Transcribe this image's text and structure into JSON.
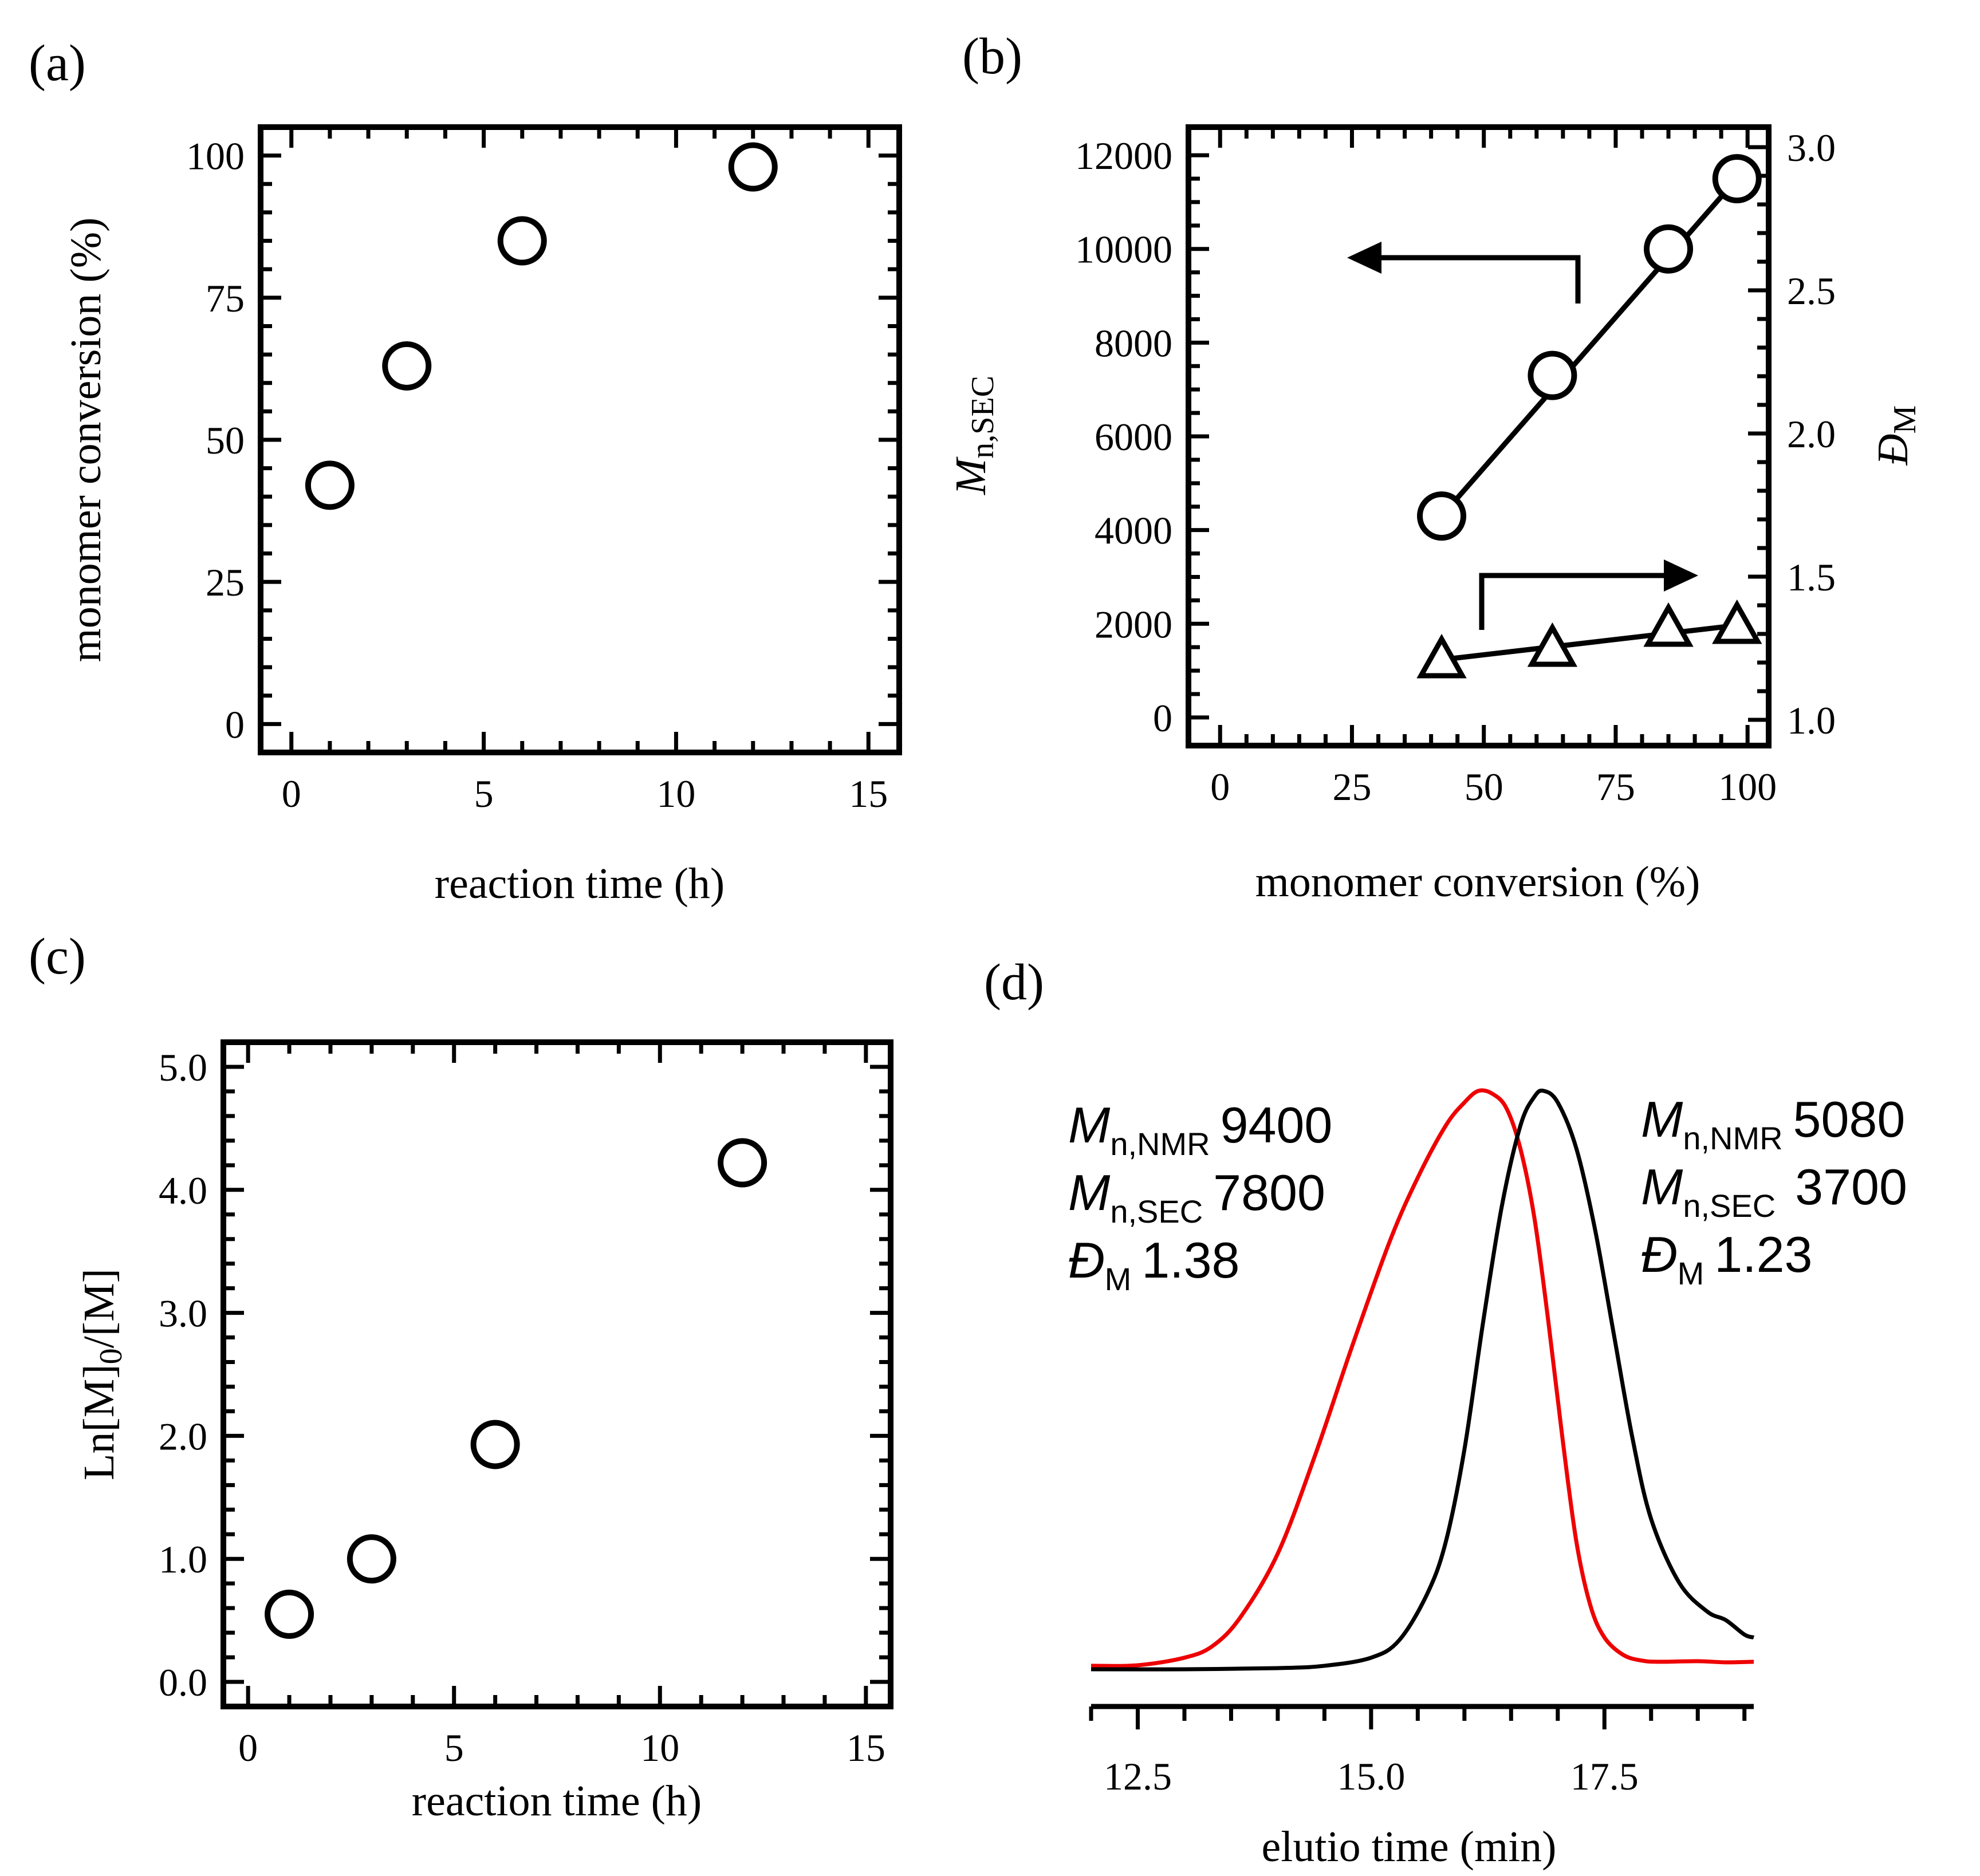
{
  "chart_data": [
    {
      "panel": "(a)",
      "type": "scatter",
      "xlabel": "reaction time (h)",
      "ylabel": "monomer conversion (%)",
      "xlim": [
        -0.8,
        15.8
      ],
      "ylim": [
        -5,
        105
      ],
      "xticks": [
        0,
        5,
        10,
        15
      ],
      "yticks": [
        0,
        25,
        50,
        75,
        100
      ],
      "xtick_labels": [
        "0",
        "5",
        "10",
        "15"
      ],
      "ytick_labels": [
        "0",
        "25",
        "50",
        "75",
        "100"
      ],
      "series": [
        {
          "name": "conversion",
          "marker": "circle",
          "x": [
            1,
            3,
            6,
            12
          ],
          "y": [
            42,
            63,
            85,
            98
          ]
        }
      ]
    },
    {
      "panel": "(b)",
      "type": "scatter",
      "xlabel": "monomer conversion (%)",
      "ylabel": "M",
      "ylabel_sub": "n,SEC",
      "y2label": "Đ",
      "y2label_sub": "M",
      "xlim": [
        -6,
        104
      ],
      "ylim": [
        -600,
        12600
      ],
      "y2lim": [
        0.91,
        3.07
      ],
      "xticks": [
        0,
        25,
        50,
        75,
        100
      ],
      "yticks": [
        0,
        2000,
        4000,
        6000,
        8000,
        10000,
        12000
      ],
      "y2ticks": [
        1.0,
        1.5,
        2.0,
        2.5,
        3.0
      ],
      "xtick_labels": [
        "0",
        "25",
        "50",
        "75",
        "100"
      ],
      "ytick_labels": [
        "0",
        "2000",
        "4000",
        "6000",
        "8000",
        "10000",
        "12000"
      ],
      "y2tick_labels": [
        "1.0",
        "1.5",
        "2.0",
        "2.5",
        "3.0"
      ],
      "series": [
        {
          "name": "Mn,SEC",
          "axis": "left",
          "marker": "circle",
          "x": [
            42,
            63,
            85,
            98
          ],
          "y": [
            4300,
            7300,
            10000,
            11500
          ],
          "fit_line": true
        },
        {
          "name": "ĐM",
          "axis": "right",
          "marker": "triangle",
          "x": [
            42,
            63,
            85,
            98
          ],
          "y": [
            1.21,
            1.25,
            1.32,
            1.33
          ],
          "fit_line": true
        }
      ],
      "annotations": [
        {
          "type": "arrow",
          "direction": "left",
          "series": "Mn,SEC"
        },
        {
          "type": "arrow",
          "direction": "right",
          "series": "ĐM"
        }
      ]
    },
    {
      "panel": "(c)",
      "type": "scatter",
      "xlabel": "reaction time (h)",
      "ylabel": "Ln[M]",
      "ylabel_sub": "0",
      "ylabel_tail": "/[M]",
      "xlim": [
        -0.6,
        15.6
      ],
      "ylim": [
        -0.2,
        5.2
      ],
      "xticks": [
        0,
        5,
        10,
        15
      ],
      "yticks": [
        0.0,
        1.0,
        2.0,
        3.0,
        4.0,
        5.0
      ],
      "xtick_labels": [
        "0",
        "5",
        "10",
        "15"
      ],
      "ytick_labels": [
        "0.0",
        "1.0",
        "2.0",
        "3.0",
        "4.0",
        "5.0"
      ],
      "series": [
        {
          "name": "Ln[M]0/[M]",
          "marker": "circle",
          "x": [
            1,
            3,
            6,
            12
          ],
          "y": [
            0.55,
            1.0,
            1.93,
            4.22
          ]
        }
      ]
    },
    {
      "panel": "(d)",
      "type": "line",
      "xlabel": "elutio time (min)",
      "xlim": [
        12.0,
        19.1
      ],
      "xticks": [
        12.5,
        15.0,
        17.5
      ],
      "xtick_labels": [
        "12.5",
        "15.0",
        "17.5"
      ],
      "series": [
        {
          "name": "red trace",
          "color": "#ee0000",
          "x": [
            12.0,
            12.5,
            13.0,
            13.3,
            13.6,
            14.0,
            14.4,
            14.8,
            15.2,
            15.5,
            15.8,
            16.0,
            16.15,
            16.3,
            16.45,
            16.6,
            16.75,
            16.9,
            17.05,
            17.2,
            17.35,
            17.5,
            17.7,
            17.9,
            18.1,
            18.5,
            18.8,
            19.1
          ],
          "y": [
            0.006,
            0.007,
            0.02,
            0.04,
            0.09,
            0.2,
            0.37,
            0.56,
            0.74,
            0.85,
            0.94,
            0.98,
            1.0,
            0.995,
            0.97,
            0.9,
            0.78,
            0.6,
            0.4,
            0.22,
            0.11,
            0.055,
            0.025,
            0.015,
            0.013,
            0.014,
            0.012,
            0.013
          ]
        },
        {
          "name": "black trace",
          "color": "#000000",
          "x": [
            12.0,
            13.0,
            14.0,
            14.5,
            15.0,
            15.3,
            15.6,
            15.8,
            16.0,
            16.2,
            16.4,
            16.6,
            16.75,
            16.85,
            17.0,
            17.2,
            17.4,
            17.6,
            17.8,
            18.0,
            18.3,
            18.6,
            18.8,
            19.0,
            19.1
          ],
          "y": [
            0.0,
            0.0,
            0.002,
            0.006,
            0.02,
            0.05,
            0.13,
            0.22,
            0.38,
            0.6,
            0.8,
            0.94,
            0.99,
            1.0,
            0.98,
            0.9,
            0.76,
            0.58,
            0.4,
            0.26,
            0.15,
            0.1,
            0.085,
            0.06,
            0.055
          ]
        }
      ],
      "annotations": {
        "left": {
          "mnmr_label": "M",
          "mnmr_sub": "n,NMR",
          "mnmr_value": "9400",
          "msec_label": "M",
          "msec_sub": "n,SEC",
          "msec_value": "7800",
          "d_label": "Đ",
          "d_sub": "M",
          "d_value": "1.38"
        },
        "right": {
          "mnmr_label": "M",
          "mnmr_sub": "n,NMR",
          "mnmr_value": "5080",
          "msec_label": "M",
          "msec_sub": "n,SEC",
          "msec_value": "3700",
          "d_label": "Đ",
          "d_sub": "M",
          "d_value": "1.23"
        }
      }
    }
  ]
}
